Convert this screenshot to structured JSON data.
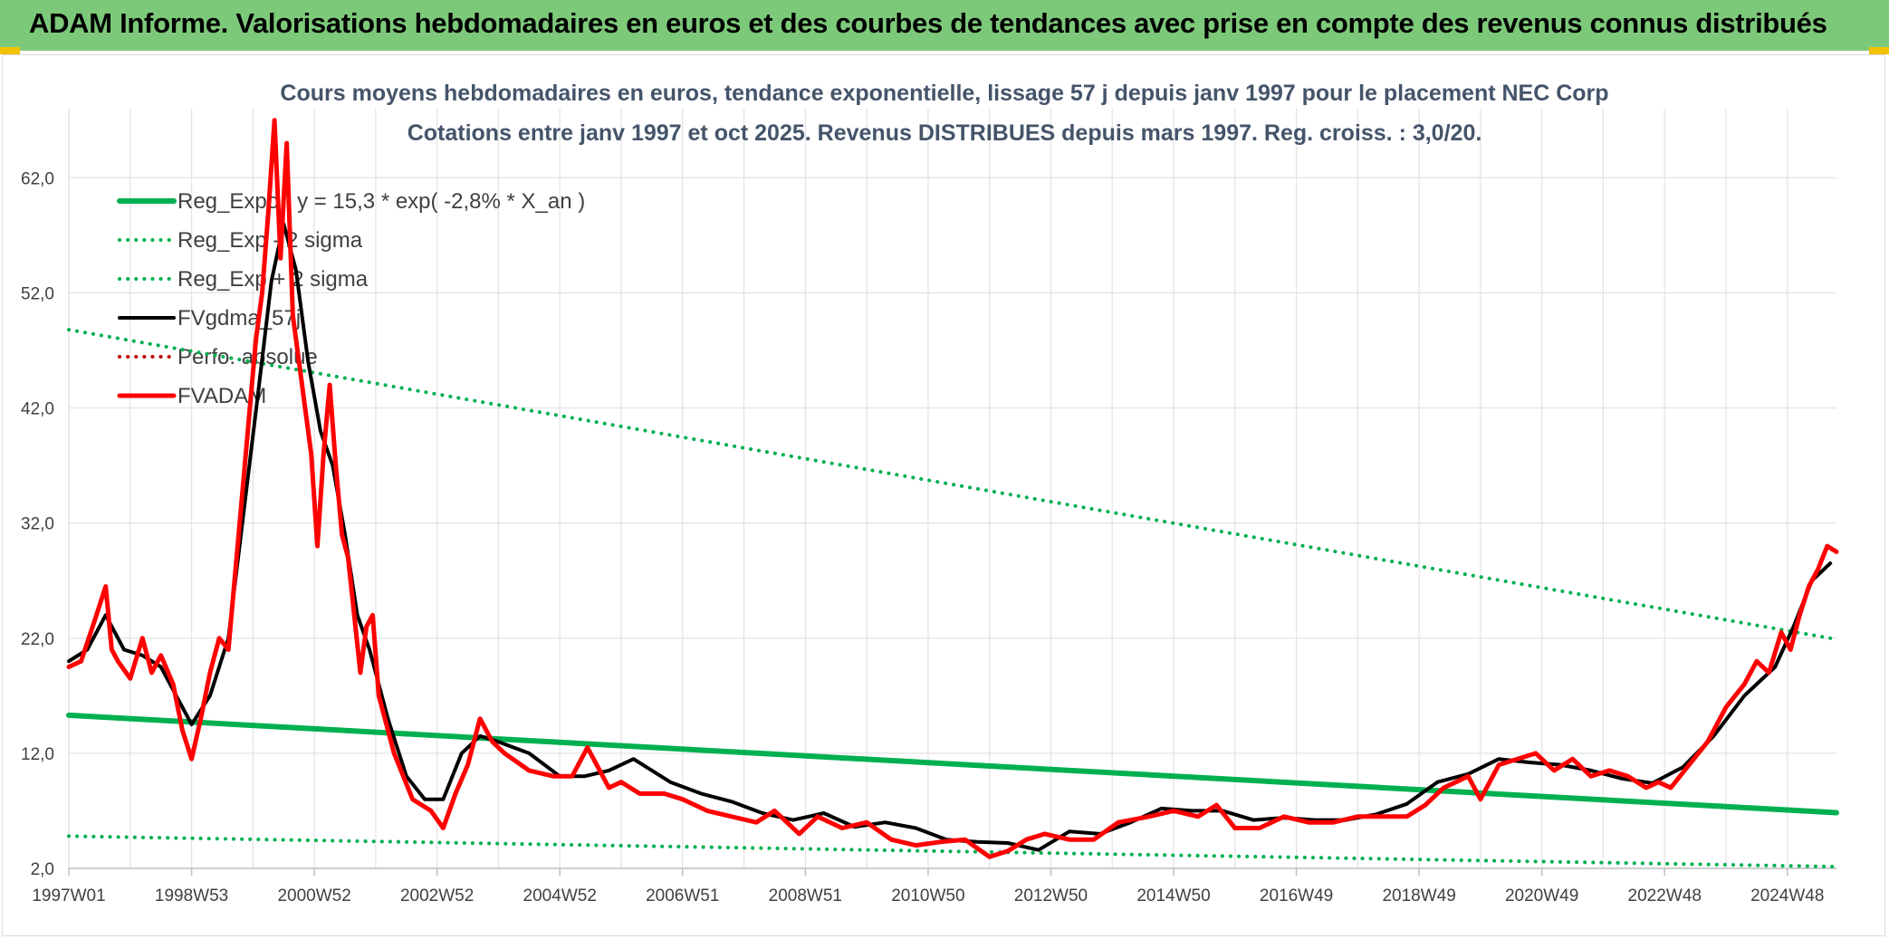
{
  "header": {
    "title": "ADAM Informe. Valorisations hebdomadaires en euros et des courbes de tendances avec prise en compte des revenus connus distribués",
    "bar_color": "#7dc97a",
    "corner_color": "#f2c200"
  },
  "chart_data": {
    "type": "line",
    "title": [
      "Cours moyens hebdomadaires en euros, tendance exponentielle, lissage 57 j depuis janv 1997 pour le placement NEC Corp",
      "Cotations entre janv 1997 et oct 2025. Revenus DISTRIBUES depuis mars 1997. Reg. croiss. : 3,0/20."
    ],
    "xlabel": "",
    "ylabel": "",
    "xlim": [
      1997.0,
      2025.8
    ],
    "ylim": [
      2.0,
      68.0
    ],
    "grid": true,
    "yticks": [
      2.0,
      12.0,
      22.0,
      32.0,
      42.0,
      52.0,
      62.0
    ],
    "ytick_labels": [
      "2,0",
      "12,0",
      "22,0",
      "32,0",
      "42,0",
      "52,0",
      "62,0"
    ],
    "xtick_positions": [
      1997.0,
      1999.0,
      2001.0,
      2003.0,
      2005.0,
      2007.0,
      2009.0,
      2011.0,
      2013.0,
      2015.0,
      2017.0,
      2019.0,
      2021.0,
      2023.0,
      2025.0
    ],
    "xtick_labels": [
      "1997W01",
      "1998W53",
      "2000W52",
      "2002W52",
      "2004W52",
      "2006W51",
      "2008W51",
      "2010W50",
      "2012W50",
      "2014W50",
      "2016W49",
      "2018W49",
      "2020W49",
      "2022W48",
      "2024W48"
    ],
    "legend_position": "top-left",
    "series": [
      {
        "name": "Reg_Expo : y = 15,3 * exp( -2,8% *  X_an )",
        "color": "#00b050",
        "style": "solid",
        "width": 6,
        "x": [
          1997.0,
          2025.8
        ],
        "values": [
          15.3,
          6.84
        ]
      },
      {
        "name": "Reg_Exp - 2 sigma",
        "color": "#00b050",
        "style": "dotted",
        "width": 4,
        "x": [
          1997.0,
          2025.8
        ],
        "values": [
          4.8,
          2.15
        ]
      },
      {
        "name": "Reg_Exp + 2 sigma",
        "color": "#00b050",
        "style": "dotted",
        "width": 4,
        "x": [
          1997.0,
          2025.8
        ],
        "values": [
          48.8,
          21.9
        ]
      },
      {
        "name": "FVgdma_57j",
        "color": "#000000",
        "style": "solid",
        "width": 4,
        "x": [
          1997.0,
          1997.3,
          1997.6,
          1997.9,
          1998.2,
          1998.5,
          1998.75,
          1999.0,
          1999.3,
          1999.6,
          1999.85,
          2000.1,
          2000.3,
          2000.5,
          2000.7,
          2000.9,
          2001.1,
          2001.3,
          2001.5,
          2001.7,
          2001.9,
          2002.2,
          2002.5,
          2002.8,
          2003.1,
          2003.4,
          2003.7,
          2004.0,
          2004.5,
          2005.0,
          2005.4,
          2005.8,
          2006.2,
          2006.8,
          2007.3,
          2007.8,
          2008.3,
          2008.8,
          2009.3,
          2009.8,
          2010.3,
          2010.8,
          2011.3,
          2011.8,
          2012.3,
          2012.8,
          2013.3,
          2013.8,
          2014.3,
          2014.8,
          2015.3,
          2015.8,
          2016.3,
          2016.8,
          2017.3,
          2017.8,
          2018.3,
          2018.8,
          2019.3,
          2019.8,
          2020.3,
          2020.8,
          2021.3,
          2021.8,
          2022.3,
          2022.8,
          2023.3,
          2023.8,
          2024.3,
          2024.8,
          2025.1,
          2025.4,
          2025.7
        ],
        "values": [
          20.0,
          21.0,
          24.0,
          21.0,
          20.5,
          19.5,
          17.0,
          14.5,
          17.0,
          22.0,
          33.0,
          44.0,
          53.0,
          58.0,
          54.0,
          46.0,
          40.0,
          37.0,
          31.0,
          24.0,
          21.0,
          15.0,
          10.0,
          8.0,
          8.0,
          12.0,
          13.5,
          13.0,
          12.0,
          10.0,
          10.0,
          10.5,
          11.5,
          9.5,
          8.5,
          7.8,
          6.8,
          6.2,
          6.8,
          5.6,
          6.0,
          5.5,
          4.5,
          4.3,
          4.2,
          3.6,
          5.2,
          5.0,
          6.0,
          7.2,
          7.0,
          7.0,
          6.2,
          6.4,
          6.2,
          6.2,
          6.7,
          7.6,
          9.5,
          10.2,
          11.5,
          11.2,
          11.0,
          10.5,
          9.8,
          9.4,
          10.8,
          13.5,
          17.0,
          19.5,
          23.0,
          27.0,
          28.5
        ]
      },
      {
        "name": "Perfo. absolue",
        "color": "#c00000",
        "style": "dotted",
        "width": 4,
        "x": [],
        "values": []
      },
      {
        "name": "FVADAM",
        "color": "#ff0000",
        "style": "solid",
        "width": 5,
        "x": [
          1997.0,
          1997.2,
          1997.45,
          1997.6,
          1997.7,
          1997.8,
          1998.0,
          1998.2,
          1998.35,
          1998.5,
          1998.7,
          1998.85,
          1999.0,
          1999.15,
          1999.3,
          1999.45,
          1999.6,
          1999.7,
          1999.85,
          1999.95,
          2000.05,
          2000.15,
          2000.25,
          2000.35,
          2000.45,
          2000.55,
          2000.65,
          2000.75,
          2000.85,
          2000.95,
          2001.05,
          2001.15,
          2001.25,
          2001.35,
          2001.45,
          2001.55,
          2001.65,
          2001.75,
          2001.85,
          2001.95,
          2002.05,
          2002.3,
          2002.6,
          2002.9,
          2003.1,
          2003.3,
          2003.5,
          2003.7,
          2003.9,
          2004.1,
          2004.5,
          2004.9,
          2005.2,
          2005.45,
          2005.6,
          2005.8,
          2006.0,
          2006.3,
          2006.7,
          2007.0,
          2007.4,
          2007.8,
          2008.2,
          2008.5,
          2008.9,
          2009.2,
          2009.6,
          2010.0,
          2010.4,
          2010.8,
          2011.2,
          2011.6,
          2012.0,
          2012.3,
          2012.6,
          2012.9,
          2013.3,
          2013.7,
          2014.1,
          2014.6,
          2015.0,
          2015.4,
          2015.7,
          2016.0,
          2016.4,
          2016.8,
          2017.2,
          2017.6,
          2018.0,
          2018.4,
          2018.8,
          2019.1,
          2019.4,
          2019.6,
          2019.8,
          2020.0,
          2020.3,
          2020.6,
          2020.9,
          2021.2,
          2021.5,
          2021.8,
          2022.1,
          2022.4,
          2022.7,
          2022.9,
          2023.1,
          2023.4,
          2023.7,
          2024.0,
          2024.3,
          2024.5,
          2024.7,
          2024.9,
          2025.05,
          2025.2,
          2025.35,
          2025.5,
          2025.65,
          2025.8
        ],
        "values": [
          19.5,
          20.0,
          24.0,
          26.5,
          21.0,
          20.0,
          18.5,
          22.0,
          19.0,
          20.5,
          18.0,
          14.0,
          11.5,
          15.0,
          19.0,
          22.0,
          21.0,
          27.0,
          36.0,
          42.0,
          48.0,
          52.0,
          59.0,
          67.0,
          55.0,
          65.0,
          50.0,
          46.0,
          42.0,
          38.0,
          30.0,
          38.0,
          44.0,
          37.0,
          31.0,
          29.0,
          24.0,
          19.0,
          23.0,
          24.0,
          17.0,
          12.0,
          8.0,
          7.0,
          5.5,
          8.5,
          11.0,
          15.0,
          13.0,
          12.0,
          10.5,
          10.0,
          10.0,
          12.5,
          11.0,
          9.0,
          9.5,
          8.5,
          8.5,
          8.0,
          7.0,
          6.5,
          6.0,
          7.0,
          5.0,
          6.5,
          5.5,
          6.0,
          4.5,
          4.0,
          4.3,
          4.5,
          3.0,
          3.5,
          4.5,
          5.0,
          4.5,
          4.5,
          6.0,
          6.5,
          7.0,
          6.5,
          7.5,
          5.5,
          5.5,
          6.5,
          6.0,
          6.0,
          6.5,
          6.5,
          6.5,
          7.5,
          9.0,
          9.5,
          10.0,
          8.0,
          11.0,
          11.5,
          12.0,
          10.5,
          11.5,
          10.0,
          10.5,
          10.0,
          9.0,
          9.5,
          9.0,
          11.0,
          13.0,
          16.0,
          18.0,
          20.0,
          19.0,
          22.5,
          21.0,
          24.0,
          26.5,
          28.0,
          30.0,
          29.5
        ]
      }
    ]
  }
}
